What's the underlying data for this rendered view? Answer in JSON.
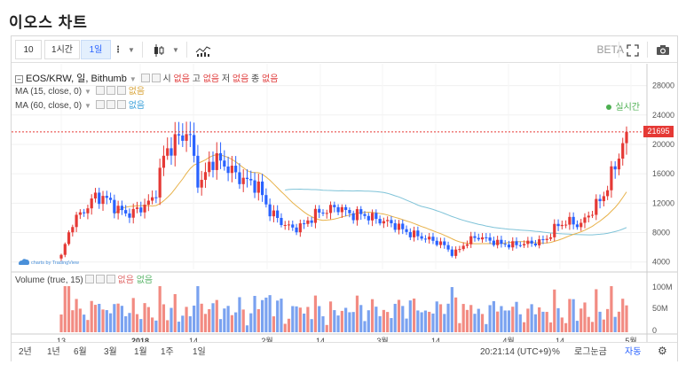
{
  "page": {
    "title": "이오스 차트"
  },
  "toolbar": {
    "interval_input": "10",
    "interval_1h": "1시간",
    "interval_1d": "1일",
    "beta": "BETA"
  },
  "legend": {
    "symbol": "EOS/KRW, 일, Bithumb",
    "ohlc": [
      {
        "k": "시",
        "v": "없음"
      },
      {
        "k": "고",
        "v": "없음"
      },
      {
        "k": "저",
        "v": "없음"
      },
      {
        "k": "종",
        "v": "없음"
      }
    ],
    "ma15": {
      "label": "MA (15, close, 0)",
      "value": "없음"
    },
    "ma60": {
      "label": "MA (60, close, 0)",
      "value": "없음"
    },
    "volume": {
      "label": "Volume (true, 15)",
      "v1": "없음",
      "v2": "없음"
    },
    "live": "실시간",
    "watermark": "charts by TradingView"
  },
  "price_axis": {
    "ticks": [
      "28000",
      "24000",
      "20000",
      "16000",
      "12000",
      "8000",
      "4000"
    ],
    "last": "21695",
    "last_color": "#e53935"
  },
  "volume_axis": {
    "ticks": [
      "100M",
      "50M",
      "0"
    ]
  },
  "time_axis": {
    "labels": [
      "13",
      "2018",
      "14",
      "2월",
      "14",
      "3월",
      "14",
      "4월",
      "14",
      "5월"
    ]
  },
  "bottom": {
    "ranges": [
      "2년",
      "1년",
      "6월",
      "3월",
      "1월",
      "1주",
      "1일"
    ],
    "clock": "20:21:14 (UTC+9)",
    "percent": "%",
    "log": "로그눈금",
    "auto": "자동"
  },
  "colors": {
    "up": "#e53935",
    "down": "#2962ff",
    "ma15": "#e8b24a",
    "ma60": "#7fc3d8"
  },
  "chart_data": {
    "type": "candlestick",
    "series": [
      {
        "name": "EOS/KRW",
        "close_points": [
          4800,
          9500,
          11000,
          13000,
          12500,
          11000,
          10500,
          11500,
          12500,
          19000,
          20500,
          22000,
          14000,
          18000,
          17500,
          16000,
          15000,
          14500,
          11000,
          9500,
          8500,
          9000,
          10500,
          11000,
          11500,
          10500,
          10500,
          10000,
          9500,
          9000,
          8000,
          7500,
          7000,
          6500,
          5000,
          6500,
          7500,
          7000,
          6500,
          6300,
          6500,
          6600,
          7000,
          9000,
          9500,
          9000,
          11000,
          13000,
          17000,
          21695
        ]
      },
      {
        "name": "MA (15, close, 0)"
      },
      {
        "name": "MA (60, close, 0)"
      },
      {
        "name": "Volume (true, 15)"
      }
    ],
    "y_range": [
      3000,
      30000
    ],
    "last_price": 21695
  }
}
